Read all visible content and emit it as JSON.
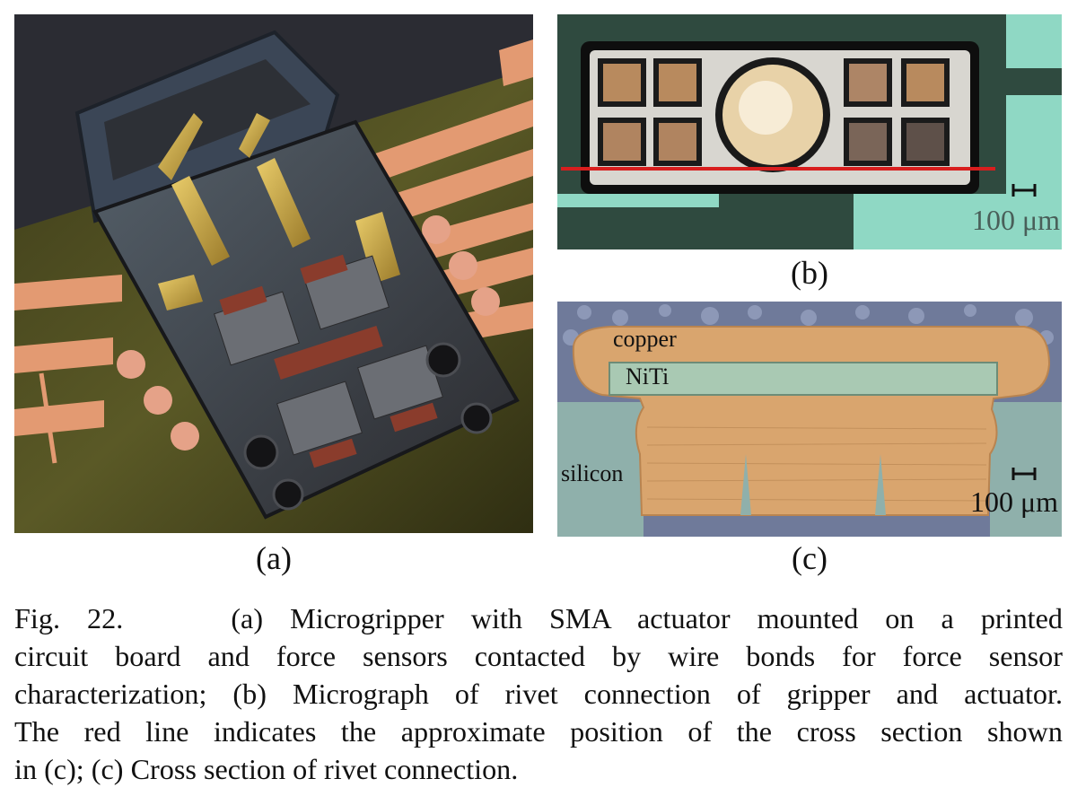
{
  "figure": {
    "panels": {
      "a": {
        "label": "(a)"
      },
      "b": {
        "label": "(b)",
        "scale_bar": "100 μm"
      },
      "c": {
        "label": "(c)",
        "scale_bar": "100 μm",
        "material_labels": {
          "copper": "copper",
          "niti": "NiTi",
          "silicon": "silicon"
        }
      }
    },
    "caption_lines": [
      "Fig. 22.    (a) Microgripper with SMA actuator mounted on a printed",
      "circuit board and force sensors contacted by wire bonds for force sensor",
      "characterization; (b) Micrograph of rivet connection of gripper and actuator.",
      "The red line indicates the approximate position of the cross section shown",
      "in (c); (c) Cross section of rivet connection."
    ]
  },
  "colors": {
    "copper": "#d9a56e",
    "niti": "#a9c9b3",
    "silicon": "#8fb0ab",
    "marker_line": "#d81e1e",
    "background_green": "#5f8a76",
    "pcb": "#4a4a20"
  }
}
